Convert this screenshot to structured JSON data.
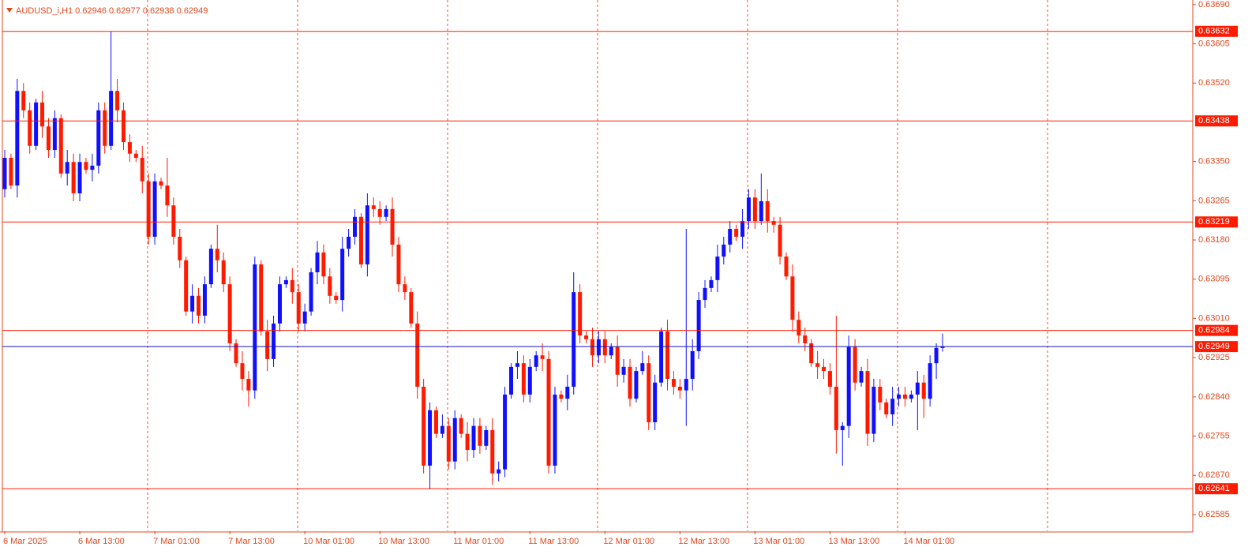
{
  "chart_data": {
    "type": "candlestick",
    "title": "AUDUSD_i,H1  0.62946 0.62977 0.62938 0.62949",
    "bull_color": "#1010ff",
    "bear_color": "#ff1a00",
    "grid": true,
    "ylim": [
      0.62549,
      0.637
    ],
    "yticks": [
      {
        "value": 0.6369,
        "label": "0.63690"
      },
      {
        "value": 0.63605,
        "label": "0.63605"
      },
      {
        "value": 0.6352,
        "label": "0.63520"
      },
      {
        "value": 0.6335,
        "label": "0.63350"
      },
      {
        "value": 0.63265,
        "label": "0.63265"
      },
      {
        "value": 0.6318,
        "label": "0.63180"
      },
      {
        "value": 0.63095,
        "label": "0.63095"
      },
      {
        "value": 0.6301,
        "label": "0.63010"
      },
      {
        "value": 0.62925,
        "label": "0.62925"
      },
      {
        "value": 0.6284,
        "label": "0.62840"
      },
      {
        "value": 0.62755,
        "label": "0.62755"
      },
      {
        "value": 0.6267,
        "label": "0.62670"
      },
      {
        "value": 0.62585,
        "label": "0.62585"
      }
    ],
    "levels": [
      0.63632,
      0.63438,
      0.63219,
      0.62984,
      0.62641
    ],
    "level_color": "#ff1a00",
    "bid_line": 0.62949,
    "bid_color": "#1010c0",
    "categories": [
      "6 Mar 2025",
      null,
      null,
      null,
      null,
      null,
      null,
      null,
      null,
      null,
      null,
      null,
      "6 Mar 13:00",
      null,
      null,
      null,
      null,
      null,
      null,
      null,
      null,
      null,
      null,
      null,
      "7 Mar 01:00",
      null,
      null,
      null,
      null,
      null,
      null,
      null,
      null,
      null,
      null,
      null,
      "7 Mar 13:00",
      null,
      null,
      null,
      null,
      null,
      null,
      null,
      null,
      null,
      null,
      null,
      "10 Mar 01:00",
      null,
      null,
      null,
      null,
      null,
      null,
      null,
      null,
      null,
      null,
      null,
      "10 Mar 13:00",
      null,
      null,
      null,
      null,
      null,
      null,
      null,
      null,
      null,
      null,
      null,
      "11 Mar 01:00",
      null,
      null,
      null,
      null,
      null,
      null,
      null,
      null,
      null,
      null,
      null,
      "11 Mar 13:00",
      null,
      null,
      null,
      null,
      null,
      null,
      null,
      null,
      null,
      null,
      null,
      "12 Mar 01:00",
      null,
      null,
      null,
      null,
      null,
      null,
      null,
      null,
      null,
      null,
      null,
      "12 Mar 13:00",
      null,
      null,
      null,
      null,
      null,
      null,
      null,
      null,
      null,
      null,
      null,
      "13 Mar 01:00",
      null,
      null,
      null,
      null,
      null,
      null,
      null,
      null,
      null,
      null,
      null,
      "13 Mar 13:00",
      null,
      null,
      null,
      null,
      null,
      null,
      null,
      null,
      null,
      null,
      null,
      "14 Mar 01:00",
      null,
      null,
      null,
      null,
      null,
      null
    ],
    "open": [
      0.6329,
      0.63358,
      0.63298,
      0.63503,
      0.63461,
      0.63384,
      0.63478,
      0.63426,
      0.63375,
      0.63444,
      0.63324,
      0.63349,
      0.63281,
      0.63349,
      0.63332,
      0.63341,
      0.63461,
      0.63384,
      0.63503,
      0.63461,
      0.63392,
      0.63367,
      0.63358,
      0.63307,
      0.63187,
      0.63307,
      0.63298,
      0.63255,
      0.63187,
      0.63136,
      0.63025,
      0.63059,
      0.63016,
      0.63084,
      0.63161,
      0.63136,
      0.63084,
      0.62956,
      0.62913,
      0.62879,
      0.62854,
      0.63127,
      0.62982,
      0.62922,
      0.62999,
      0.63084,
      0.63093,
      0.63067,
      0.62999,
      0.63025,
      0.6311,
      0.63153,
      0.63101,
      0.63059,
      0.6305,
      0.63161,
      0.63187,
      0.6323,
      0.63127,
      0.63255,
      0.63247,
      0.6323,
      0.63247,
      0.6317,
      0.63084,
      0.63067,
      0.62999,
      0.62862,
      0.62691,
      0.62811,
      0.6276,
      0.62777,
      0.627,
      0.62794,
      0.6276,
      0.62725,
      0.62777,
      0.62734,
      0.62768,
      0.62674,
      0.62683,
      0.62845,
      0.62905,
      0.62913,
      0.62845,
      0.62905,
      0.6293,
      0.62922,
      0.62691,
      0.62845,
      0.62836,
      0.62862,
      0.63067,
      0.62973,
      0.62965,
      0.6293,
      0.62965,
      0.6293,
      0.62948,
      0.62888,
      0.62905,
      0.62836,
      0.62896,
      0.62913,
      0.62785,
      0.62871,
      0.62982,
      0.62879,
      0.62862,
      0.62854,
      0.62879,
      0.62939,
      0.6305,
      0.63076,
      0.63093,
      0.63144,
      0.6317,
      0.63204,
      0.63187,
      0.63221,
      0.63272,
      0.63221,
      0.63264,
      0.63221,
      0.63213,
      0.63144,
      0.63101,
      0.63007,
      0.62973,
      0.62956,
      0.62913,
      0.62905,
      0.62896,
      0.62862,
      0.62768,
      0.62777,
      0.62948,
      0.62871,
      0.62896,
      0.6276,
      0.62862,
      0.62828,
      0.62802,
      0.62836,
      0.62845,
      0.62836,
      0.62845,
      0.62871,
      0.62836,
      0.62913,
      0.62946
    ],
    "high": [
      0.63375,
      0.63367,
      0.63529,
      0.6352,
      0.63478,
      0.63486,
      0.63503,
      0.63444,
      0.63461,
      0.63452,
      0.63375,
      0.63367,
      0.63367,
      0.63358,
      0.63367,
      0.63478,
      0.63478,
      0.63632,
      0.63529,
      0.63478,
      0.63409,
      0.63375,
      0.63384,
      0.63324,
      0.63324,
      0.63315,
      0.63358,
      0.63272,
      0.63204,
      0.63144,
      0.63084,
      0.63076,
      0.63101,
      0.6317,
      0.63213,
      0.63153,
      0.63101,
      0.62965,
      0.62939,
      0.62896,
      0.63144,
      0.63136,
      0.63007,
      0.63016,
      0.63101,
      0.63101,
      0.63119,
      0.63084,
      0.63042,
      0.63119,
      0.63178,
      0.6317,
      0.63119,
      0.63067,
      0.63187,
      0.63204,
      0.63247,
      0.63238,
      0.63281,
      0.63272,
      0.63264,
      0.63255,
      0.63272,
      0.63187,
      0.63101,
      0.63076,
      0.63025,
      0.62879,
      0.62828,
      0.62819,
      0.62802,
      0.62794,
      0.62811,
      0.62802,
      0.62785,
      0.62794,
      0.62794,
      0.62777,
      0.62794,
      0.627,
      0.62862,
      0.62913,
      0.62939,
      0.6293,
      0.62922,
      0.62939,
      0.62956,
      0.62939,
      0.62862,
      0.62854,
      0.62888,
      0.6311,
      0.63084,
      0.62982,
      0.6299,
      0.62982,
      0.62982,
      0.62956,
      0.62973,
      0.62922,
      0.62922,
      0.62905,
      0.62939,
      0.6293,
      0.62888,
      0.6299,
      0.63007,
      0.62896,
      0.62879,
      0.63204,
      0.62965,
      0.63067,
      0.63093,
      0.63101,
      0.6317,
      0.63187,
      0.63221,
      0.63213,
      0.63247,
      0.6329,
      0.6329,
      0.63324,
      0.6329,
      0.6323,
      0.6323,
      0.63153,
      0.63127,
      0.63025,
      0.6299,
      0.62965,
      0.62939,
      0.62922,
      0.62913,
      0.63016,
      0.62785,
      0.62973,
      0.62965,
      0.62905,
      0.62922,
      0.62879,
      0.62879,
      0.62836,
      0.62862,
      0.62862,
      0.62862,
      0.62854,
      0.62896,
      0.62888,
      0.6293,
      0.62956,
      0.62977
    ],
    "low": [
      0.63272,
      0.6329,
      0.63272,
      0.63444,
      0.63367,
      0.63375,
      0.63401,
      0.63358,
      0.63358,
      0.63315,
      0.63298,
      0.63264,
      0.63264,
      0.63324,
      0.63307,
      0.63324,
      0.63367,
      0.63375,
      0.63435,
      0.63375,
      0.63349,
      0.63349,
      0.63281,
      0.6317,
      0.6317,
      0.6329,
      0.6323,
      0.6317,
      0.63119,
      0.63016,
      0.62999,
      0.62999,
      0.62999,
      0.63076,
      0.6311,
      0.63067,
      0.62939,
      0.62905,
      0.62854,
      0.62819,
      0.62836,
      0.62973,
      0.62896,
      0.62905,
      0.62982,
      0.63076,
      0.63042,
      0.62982,
      0.62982,
      0.63016,
      0.63084,
      0.63084,
      0.63042,
      0.63042,
      0.63025,
      0.63144,
      0.6317,
      0.63119,
      0.63101,
      0.6323,
      0.63213,
      0.63221,
      0.63144,
      0.63067,
      0.6305,
      0.6299,
      0.62836,
      0.62674,
      0.6264,
      0.62751,
      0.62751,
      0.62683,
      0.62683,
      0.62751,
      0.627,
      0.62708,
      0.62717,
      0.62725,
      0.62649,
      0.62657,
      0.62666,
      0.62836,
      0.62879,
      0.62828,
      0.62828,
      0.62896,
      0.62896,
      0.62674,
      0.62674,
      0.62828,
      0.62811,
      0.62845,
      0.62956,
      0.62956,
      0.62905,
      0.62913,
      0.62913,
      0.62922,
      0.62862,
      0.62871,
      0.62819,
      0.62828,
      0.62888,
      0.62768,
      0.62768,
      0.62862,
      0.62854,
      0.62845,
      0.62836,
      0.62777,
      0.62854,
      0.62922,
      0.63033,
      0.63067,
      0.63067,
      0.63127,
      0.63153,
      0.63178,
      0.63161,
      0.63204,
      0.63204,
      0.63213,
      0.63196,
      0.63196,
      0.63127,
      0.63093,
      0.62982,
      0.62956,
      0.62939,
      0.62905,
      0.62879,
      0.62879,
      0.62845,
      0.62717,
      0.62691,
      0.62751,
      0.62854,
      0.62862,
      0.62734,
      0.62742,
      0.62811,
      0.62794,
      0.62777,
      0.62819,
      0.62819,
      0.62828,
      0.62768,
      0.62794,
      0.62819,
      0.62879,
      0.62938
    ],
    "close": [
      0.63358,
      0.63298,
      0.63503,
      0.63461,
      0.63384,
      0.63478,
      0.63426,
      0.63375,
      0.63444,
      0.63324,
      0.63349,
      0.63281,
      0.63349,
      0.63332,
      0.63341,
      0.63461,
      0.63384,
      0.63503,
      0.63461,
      0.63392,
      0.63367,
      0.63358,
      0.63307,
      0.63187,
      0.63307,
      0.63298,
      0.63255,
      0.63187,
      0.63136,
      0.63025,
      0.63059,
      0.63016,
      0.63084,
      0.63161,
      0.63136,
      0.63084,
      0.62956,
      0.62913,
      0.62879,
      0.62854,
      0.63127,
      0.62982,
      0.62922,
      0.62999,
      0.63084,
      0.63093,
      0.63067,
      0.62999,
      0.63025,
      0.6311,
      0.63153,
      0.63101,
      0.63059,
      0.6305,
      0.63161,
      0.63187,
      0.6323,
      0.63127,
      0.63255,
      0.63247,
      0.6323,
      0.63247,
      0.6317,
      0.63084,
      0.63067,
      0.62999,
      0.62862,
      0.62691,
      0.62811,
      0.6276,
      0.62777,
      0.627,
      0.62794,
      0.6276,
      0.62725,
      0.62777,
      0.62734,
      0.62768,
      0.62674,
      0.62683,
      0.62845,
      0.62905,
      0.62913,
      0.62845,
      0.62905,
      0.6293,
      0.62922,
      0.62691,
      0.62845,
      0.62836,
      0.62862,
      0.63067,
      0.62973,
      0.62965,
      0.6293,
      0.62965,
      0.6293,
      0.62948,
      0.62888,
      0.62905,
      0.62836,
      0.62896,
      0.62913,
      0.62785,
      0.62871,
      0.62982,
      0.62879,
      0.62862,
      0.62854,
      0.62879,
      0.62939,
      0.6305,
      0.63076,
      0.63093,
      0.63144,
      0.6317,
      0.63204,
      0.63187,
      0.63221,
      0.63272,
      0.63221,
      0.63264,
      0.63221,
      0.63213,
      0.63144,
      0.63101,
      0.63007,
      0.62973,
      0.62956,
      0.62913,
      0.62905,
      0.62896,
      0.62862,
      0.62768,
      0.62777,
      0.62948,
      0.62871,
      0.62896,
      0.6276,
      0.62862,
      0.62828,
      0.62802,
      0.62836,
      0.62845,
      0.62836,
      0.62845,
      0.62871,
      0.62836,
      0.62913,
      0.62946,
      0.62949
    ]
  }
}
